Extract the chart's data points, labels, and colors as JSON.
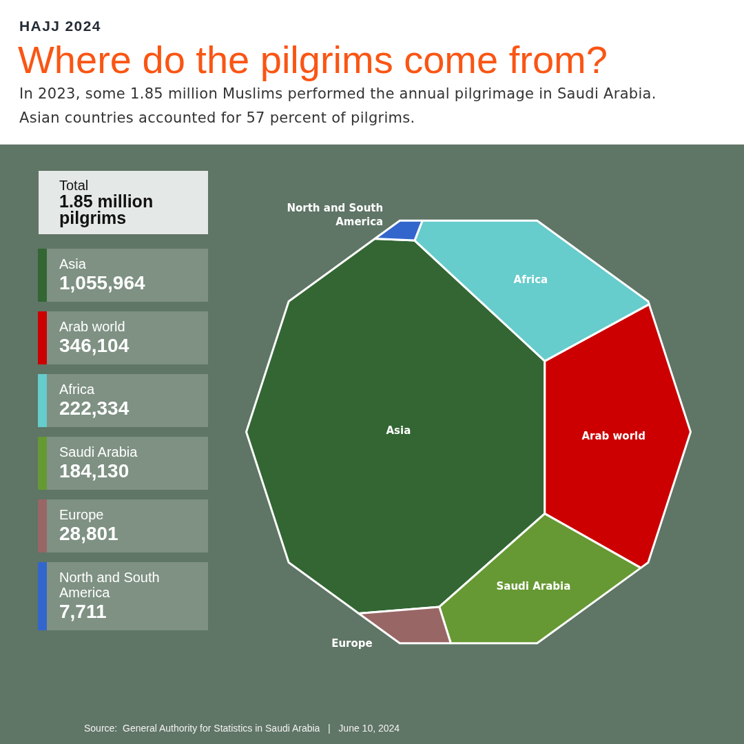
{
  "chart_data": {
    "type": "other",
    "title": "Where do the pilgrims come from?",
    "subtitle": "In 2023, some 1.85 million Muslims performed the annual pilgrimage in Saudi Arabia. Asian countries accounted for 57 percent of pilgrims.",
    "categories": [
      "Asia",
      "Arab world",
      "Africa",
      "Saudi Arabia",
      "Europe",
      "North and South America"
    ],
    "values": [
      1055964,
      346104,
      222334,
      184130,
      28801,
      7711
    ],
    "value_labels": [
      "1,055,964",
      "346,104",
      "222,334",
      "184,130",
      "28,801",
      "7,711"
    ],
    "colors": [
      "#336633",
      "#cc0000",
      "#66cccc",
      "#669933",
      "#996666",
      "#3366cc"
    ],
    "annotations": [
      "HAJJ 2024",
      "Total",
      "1.85 million pilgrims",
      "Source:  General Authority for Statistics in Saudi Arabia   |   June 10, 2024"
    ]
  }
}
